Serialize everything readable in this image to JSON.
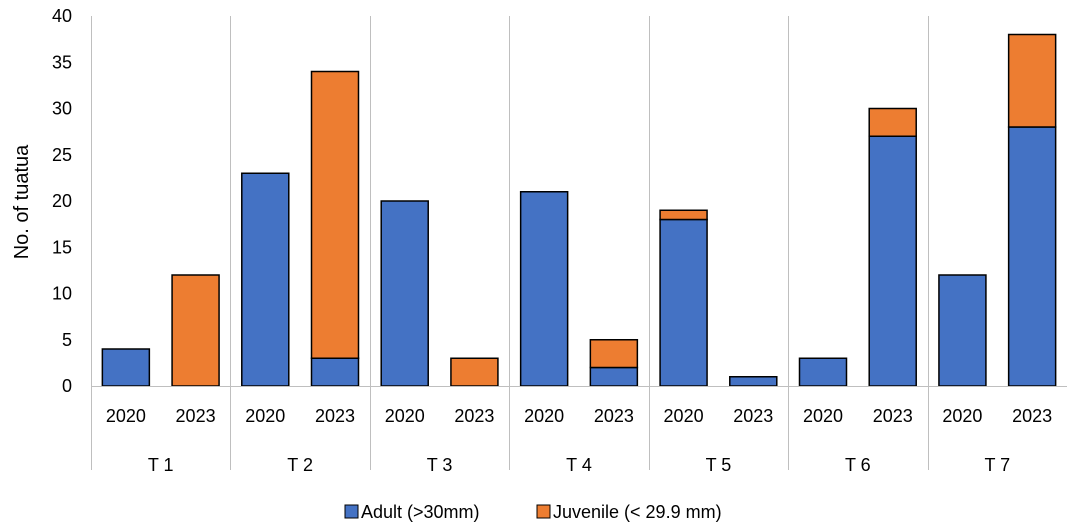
{
  "chart_data": {
    "type": "bar",
    "stacked": true,
    "title": "",
    "xlabel": "",
    "ylabel": "No. of tuatua",
    "ylim": [
      0,
      40
    ],
    "yticks": [
      0,
      5,
      10,
      15,
      20,
      25,
      30,
      35,
      40
    ],
    "grid": false,
    "legend_position": "bottom",
    "groups": [
      "T 1",
      "T 2",
      "T 3",
      "T 4",
      "T 5",
      "T 6",
      "T 7"
    ],
    "years": [
      "2020",
      "2023"
    ],
    "categories": [
      "T 1 2020",
      "T 1 2023",
      "T 2 2020",
      "T 2 2023",
      "T 3 2020",
      "T 3 2023",
      "T 4 2020",
      "T 4 2023",
      "T 5 2020",
      "T 5 2023",
      "T 6 2020",
      "T 6 2023",
      "T 7 2020",
      "T 7 2023"
    ],
    "series": [
      {
        "name": "Adult (>30mm)",
        "color": "#4472C4",
        "values": [
          4,
          0,
          23,
          3,
          20,
          0,
          21,
          2,
          18,
          1,
          3,
          27,
          12,
          28
        ]
      },
      {
        "name": "Juvenile (< 29.9 mm)",
        "color": "#ED7D31",
        "values": [
          0,
          12,
          0,
          31,
          0,
          3,
          0,
          3,
          1,
          0,
          0,
          3,
          0,
          10
        ]
      }
    ]
  }
}
